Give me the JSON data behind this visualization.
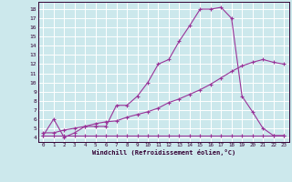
{
  "background_color": "#cce8ec",
  "grid_color": "#ffffff",
  "line_color": "#993399",
  "xlabel": "Windchill (Refroidissement éolien,°C)",
  "x_ticks": [
    0,
    1,
    2,
    3,
    4,
    5,
    6,
    7,
    8,
    9,
    10,
    11,
    12,
    13,
    14,
    15,
    16,
    17,
    18,
    19,
    20,
    21,
    22,
    23
  ],
  "ylim": [
    3.5,
    18.8
  ],
  "xlim": [
    -0.5,
    23.5
  ],
  "y_ticks": [
    4,
    5,
    6,
    7,
    8,
    9,
    10,
    11,
    12,
    13,
    14,
    15,
    16,
    17,
    18
  ],
  "line1_x": [
    0,
    1,
    2,
    3,
    4,
    5,
    6,
    7,
    8,
    9,
    10,
    11,
    12,
    13,
    14,
    15,
    16,
    17,
    18,
    19,
    20,
    21,
    22,
    23
  ],
  "line1_y": [
    4.2,
    6.0,
    4.0,
    4.5,
    5.2,
    5.2,
    5.2,
    7.5,
    7.5,
    8.5,
    10.0,
    12.0,
    12.5,
    14.5,
    16.2,
    18.0,
    18.0,
    18.2,
    17.0,
    8.5,
    6.8,
    5.0,
    4.2,
    4.2
  ],
  "line2_x": [
    0,
    1,
    2,
    3,
    4,
    5,
    6,
    7,
    8,
    9,
    10,
    11,
    12,
    13,
    14,
    15,
    16,
    17,
    18,
    19,
    20,
    21,
    22,
    23
  ],
  "line2_y": [
    4.5,
    4.5,
    4.8,
    5.0,
    5.2,
    5.5,
    5.7,
    5.8,
    6.2,
    6.5,
    6.8,
    7.2,
    7.8,
    8.2,
    8.7,
    9.2,
    9.8,
    10.5,
    11.2,
    11.8,
    12.2,
    12.5,
    12.2,
    12.0
  ],
  "line3_x": [
    0,
    1,
    2,
    3,
    4,
    5,
    6,
    7,
    8,
    9,
    10,
    11,
    12,
    13,
    14,
    15,
    16,
    17,
    18,
    19,
    20,
    21,
    22,
    23
  ],
  "line3_y": [
    4.2,
    4.2,
    4.2,
    4.2,
    4.2,
    4.2,
    4.2,
    4.2,
    4.2,
    4.2,
    4.2,
    4.2,
    4.2,
    4.2,
    4.2,
    4.2,
    4.2,
    4.2,
    4.2,
    4.2,
    4.2,
    4.2,
    4.2,
    4.2
  ]
}
